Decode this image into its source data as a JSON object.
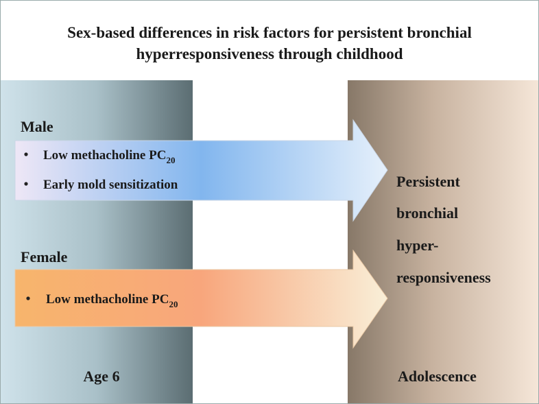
{
  "header": {
    "title_lines": [
      "Sex-based differences in risk factors for persistent bronchial",
      "hyperresponsiveness through childhood"
    ]
  },
  "groups": [
    {
      "label": "Male",
      "items": [
        {
          "text": "Low methacholine PC",
          "subscript": "20"
        },
        {
          "text": "Early mold sensitization"
        }
      ]
    },
    {
      "label": "Female",
      "items": [
        {
          "text": "Low methacholine PC",
          "subscript": "20"
        }
      ]
    }
  ],
  "outcome": {
    "lines": [
      "Persistent",
      "bronchial",
      "hyper-",
      "responsiveness"
    ]
  },
  "timeline": {
    "start": "Age 6",
    "end": "Adolescence"
  }
}
